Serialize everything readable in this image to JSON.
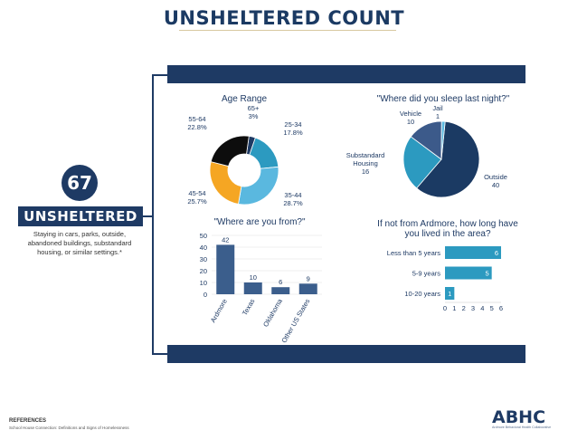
{
  "header": {
    "title": "UNSHELTERED COUNT"
  },
  "summary": {
    "count": "67",
    "label": "UNSHELTERED",
    "description": "Staying in cars, parks, outside, abandoned buildings, substandard housing, or similar settings.*"
  },
  "footer": {
    "references_label": "REFERENCES",
    "references_text": "School House Connection: Definitions and Signs of Homelessness",
    "logo": "ABHC",
    "logo_sub": "Ardmore Behavioral Health Collaborative"
  },
  "chart_data": [
    {
      "type": "pie",
      "variant": "donut",
      "title": "Age Range",
      "categories": [
        "65+",
        "25-34",
        "35-44",
        "45-54",
        "55-64"
      ],
      "values": [
        3,
        17.8,
        28.7,
        25.7,
        22.8
      ],
      "labels": [
        "3%",
        "17.8%",
        "28.7%",
        "25.7%",
        "22.8%"
      ],
      "colors": [
        "#1e3a64",
        "#2c9ac0",
        "#5ab8df",
        "#f5a623",
        "#0d0d0d"
      ]
    },
    {
      "type": "pie",
      "title": "\"Where did you sleep last night?\"",
      "categories": [
        "Outside",
        "Substandard Housing",
        "Vehicle",
        "Jail"
      ],
      "values": [
        40,
        16,
        10,
        1
      ],
      "colors": [
        "#1b3a63",
        "#2c9ac0",
        "#3c5a8a",
        "#5ab8df"
      ]
    },
    {
      "type": "bar",
      "title": "\"Where are you from?\"",
      "categories": [
        "Ardmore",
        "Texas",
        "Oklahoma",
        "Other US States"
      ],
      "values": [
        42,
        10,
        6,
        9
      ],
      "ylim": [
        0,
        50
      ],
      "yticks": [
        0,
        10,
        20,
        30,
        40,
        50
      ],
      "color": "#3b5e8c",
      "grid": true
    },
    {
      "type": "bar",
      "orientation": "horizontal",
      "title": "If not from Ardmore, how long have you lived in the area?",
      "categories": [
        "Less than 5 years",
        "5-9 years",
        "10-20 years"
      ],
      "values": [
        6,
        5,
        1
      ],
      "xlim": [
        0,
        6
      ],
      "xticks": [
        0,
        1,
        2,
        3,
        4,
        5,
        6
      ],
      "color": "#2c9ac0"
    }
  ]
}
